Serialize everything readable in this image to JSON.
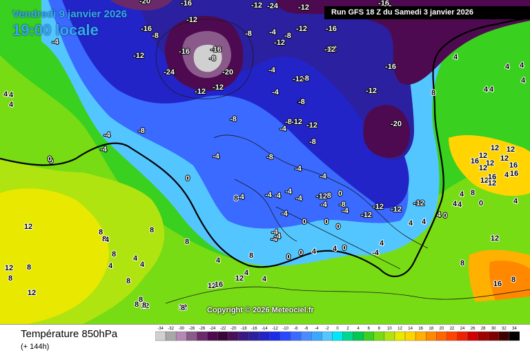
{
  "header": {
    "date_text": "Vendredi 9 janvier 2026",
    "time_text": "19:00 locale",
    "run_text": "Run GFS 18 Z du Samedi 3 janvier 2026"
  },
  "copyright": "Copyright © 2026 Meteociel.fr",
  "legend": {
    "title": "Température 850hPa",
    "lead": "(+ 144h)",
    "ticks": [
      "-34",
      "-32",
      "-30",
      "-28",
      "-26",
      "-24",
      "-22",
      "-20",
      "-18",
      "-16",
      "-14",
      "-12",
      "-10",
      "-8",
      "-6",
      "-4",
      "-2",
      "0",
      "2",
      "4",
      "6",
      "8",
      "10",
      "12",
      "14",
      "16",
      "18",
      "20",
      "22",
      "24",
      "26",
      "28",
      "30",
      "32",
      "34"
    ],
    "colors": [
      "#d0d0d0",
      "#a8a8a8",
      "#b48ab4",
      "#8a5a8a",
      "#6a2a6a",
      "#4e0a50",
      "#3a0636",
      "#48105a",
      "#3a1a80",
      "#2a20a0",
      "#2224c8",
      "#1a2ce8",
      "#2a48ff",
      "#3a6aff",
      "#4a8cff",
      "#3aa8ff",
      "#54c6ff",
      "#00e8f8",
      "#00d890",
      "#00c850",
      "#3ad020",
      "#78dc14",
      "#b0e410",
      "#e8e800",
      "#ffd400",
      "#ffb000",
      "#ff8800",
      "#ff6600",
      "#ff4400",
      "#ee2200",
      "#d00000",
      "#a00000",
      "#800000",
      "#400000",
      "#000000"
    ]
  },
  "labels": [
    {
      "t": "-20"
    },
    {
      "t": "-16"
    },
    {
      "t": "-24"
    },
    {
      "t": "-12"
    },
    {
      "t": "-16"
    },
    {
      "t": "-12"
    },
    {
      "t": "-16"
    },
    {
      "t": "-8"
    },
    {
      "t": "-4"
    },
    {
      "t": "-8"
    },
    {
      "t": "-4"
    },
    {
      "t": "-8"
    },
    {
      "t": "-12"
    },
    {
      "t": "-16"
    },
    {
      "t": "-12"
    },
    {
      "t": "-20"
    },
    {
      "t": "-24"
    },
    {
      "t": "-12"
    },
    {
      "t": "-16"
    },
    {
      "t": "-12"
    },
    {
      "t": "-12"
    },
    {
      "t": "-8"
    },
    {
      "t": "-16"
    },
    {
      "t": "-12"
    },
    {
      "t": "-16"
    },
    {
      "t": "-20"
    },
    {
      "t": "-8"
    },
    {
      "t": "-8"
    },
    {
      "t": "-12"
    },
    {
      "t": "-12"
    },
    {
      "t": "-16"
    },
    {
      "t": "-12"
    },
    {
      "t": "-8"
    },
    {
      "t": "-4"
    },
    {
      "t": "-4"
    },
    {
      "t": "-8"
    },
    {
      "t": "-4"
    },
    {
      "t": "0"
    },
    {
      "t": "0"
    },
    {
      "t": "-4"
    },
    {
      "t": "-4"
    },
    {
      "t": "4"
    },
    {
      "t": "4"
    },
    {
      "t": "4"
    },
    {
      "t": "0"
    },
    {
      "t": "4"
    },
    {
      "t": "4"
    },
    {
      "t": "-4"
    },
    {
      "t": "-8"
    },
    {
      "t": "-8"
    },
    {
      "t": "-12"
    },
    {
      "t": "-12"
    },
    {
      "t": "-8"
    },
    {
      "t": "-12"
    },
    {
      "t": "-12"
    },
    {
      "t": "-12"
    },
    {
      "t": "-12"
    },
    {
      "t": "-8"
    },
    {
      "t": "-4"
    },
    {
      "t": "-8"
    },
    {
      "t": "-4"
    },
    {
      "t": "-4"
    },
    {
      "t": "-4"
    },
    {
      "t": "-4"
    },
    {
      "t": "-4"
    },
    {
      "t": "-4"
    },
    {
      "t": "-4"
    },
    {
      "t": "-4"
    },
    {
      "t": "-4"
    },
    {
      "t": "0"
    },
    {
      "t": "-8"
    },
    {
      "t": "-12"
    },
    {
      "t": "-12"
    },
    {
      "t": "-4"
    },
    {
      "t": "0"
    },
    {
      "t": "0"
    },
    {
      "t": "0"
    },
    {
      "t": "0"
    },
    {
      "t": "-4"
    },
    {
      "t": "-4"
    },
    {
      "t": "0"
    },
    {
      "t": "4"
    },
    {
      "t": "0"
    },
    {
      "t": "4"
    },
    {
      "t": "8"
    },
    {
      "t": "12"
    },
    {
      "t": "12"
    },
    {
      "t": "16"
    },
    {
      "t": "12"
    },
    {
      "t": "12"
    },
    {
      "t": "16"
    },
    {
      "t": "12"
    },
    {
      "t": "12"
    },
    {
      "t": "16"
    },
    {
      "t": "12"
    },
    {
      "t": "12"
    },
    {
      "t": "16"
    },
    {
      "t": "4"
    },
    {
      "t": "4"
    },
    {
      "t": "4"
    },
    {
      "t": "4"
    },
    {
      "t": "4"
    },
    {
      "t": "0"
    },
    {
      "t": "0"
    },
    {
      "t": "4"
    },
    {
      "t": "4"
    },
    {
      "t": "4"
    },
    {
      "t": "8"
    },
    {
      "t": "8"
    },
    {
      "t": "8"
    },
    {
      "t": "8"
    },
    {
      "t": "8"
    },
    {
      "t": "8"
    },
    {
      "t": "4"
    },
    {
      "t": "4"
    },
    {
      "t": "8"
    },
    {
      "t": "8"
    },
    {
      "t": "8"
    },
    {
      "t": "12"
    },
    {
      "t": "12"
    },
    {
      "t": "12"
    },
    {
      "t": "12"
    },
    {
      "t": "12"
    },
    {
      "t": "8"
    },
    {
      "t": "8"
    },
    {
      "t": "12"
    },
    {
      "t": "8"
    },
    {
      "t": "8"
    },
    {
      "t": "8"
    },
    {
      "t": "8"
    },
    {
      "t": "4"
    },
    {
      "t": "4"
    },
    {
      "t": "4"
    },
    {
      "t": "4"
    },
    {
      "t": "4"
    },
    {
      "t": "12"
    },
    {
      "t": "16"
    },
    {
      "t": "12"
    },
    {
      "t": "16"
    },
    {
      "t": "8"
    },
    {
      "t": "8"
    },
    {
      "t": "4"
    },
    {
      "t": "4"
    },
    {
      "t": "4"
    },
    {
      "t": "4"
    },
    {
      "t": "-4"
    },
    {
      "t": "4"
    }
  ]
}
